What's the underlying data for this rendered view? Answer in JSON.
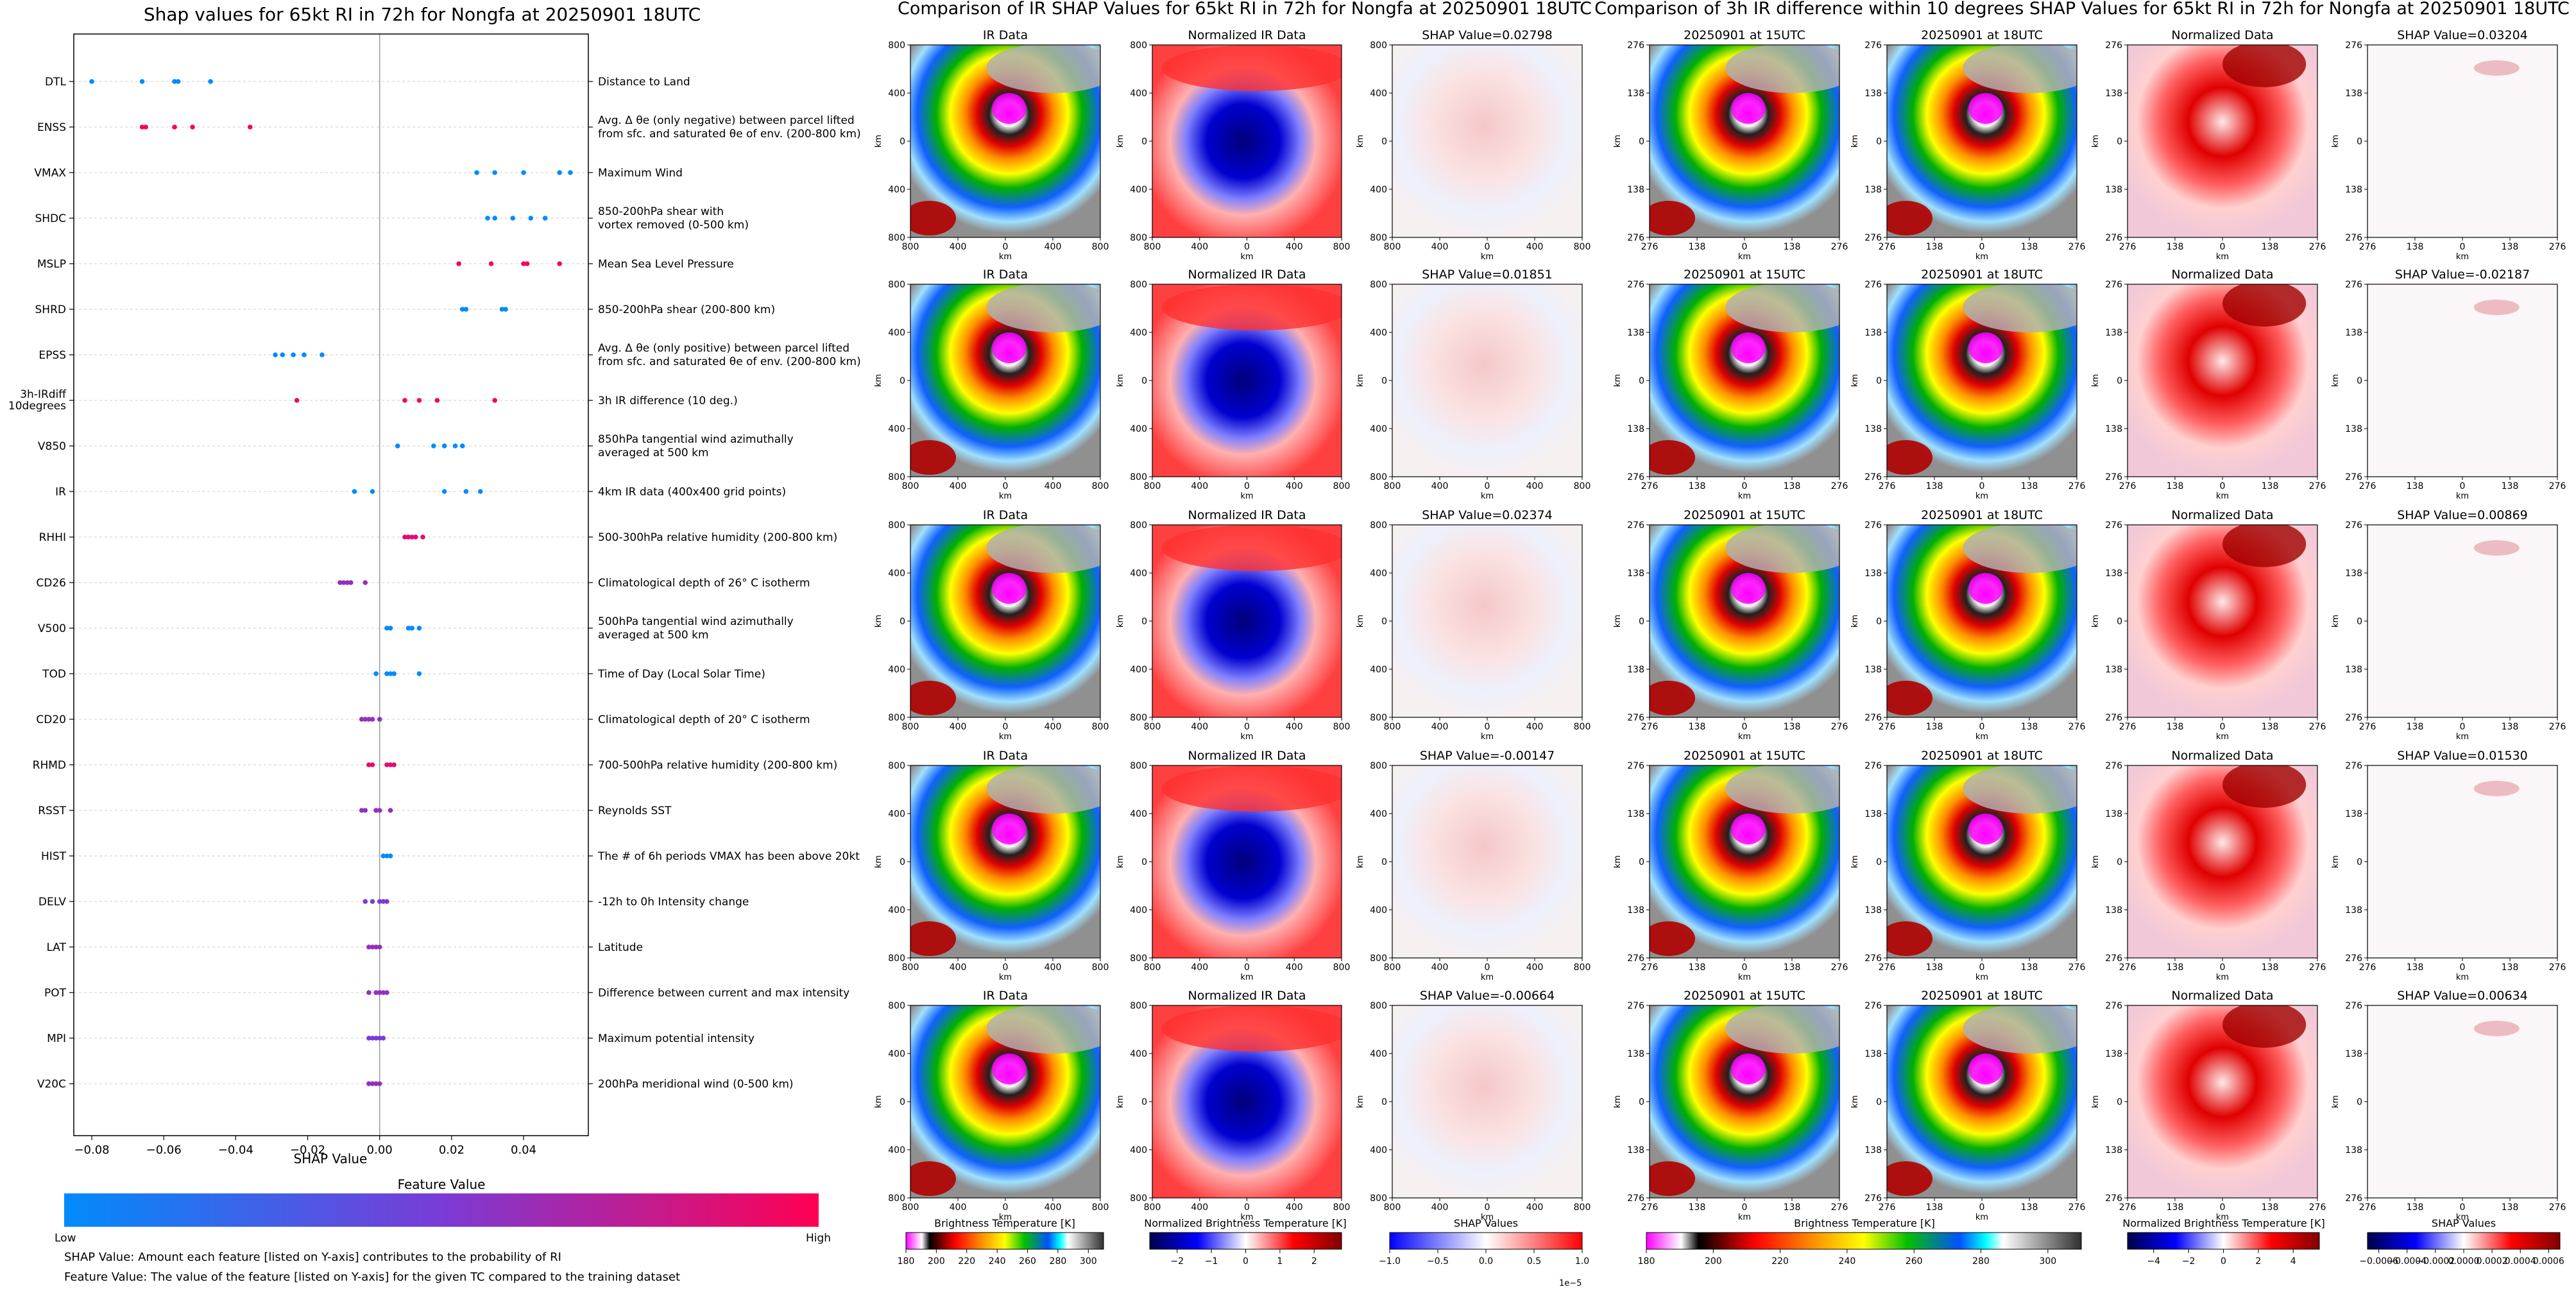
{
  "chart_data": [
    {
      "type": "scatter",
      "title": "Shap values for 65kt RI in 72h for Nongfa at 20250901 18UTC",
      "xlabel": "SHAP Value",
      "xlim": [
        -0.085,
        0.058
      ],
      "xticks": [
        "-0.08",
        "-0.06",
        "-0.04",
        "-0.02",
        "0.00",
        "0.02",
        "0.04"
      ],
      "grid": "horizontal dashed",
      "features": [
        {
          "name": "DTL",
          "desc": "Distance to Land",
          "pts": [
            [
              -0.08,
              0.0
            ],
            [
              -0.066,
              0.0
            ],
            [
              -0.057,
              0.0
            ],
            [
              -0.056,
              0.0
            ],
            [
              -0.047,
              0.0
            ]
          ]
        },
        {
          "name": "ENSS",
          "desc": "Avg. Δ θe (only negative) between parcel lifted from sfc. and saturated θe of env. (200-800 km)",
          "pts": [
            [
              -0.066,
              0.95
            ],
            [
              -0.065,
              0.95
            ],
            [
              -0.057,
              0.95
            ],
            [
              -0.052,
              0.95
            ],
            [
              -0.036,
              0.95
            ]
          ]
        },
        {
          "name": "VMAX",
          "desc": "Maximum Wind",
          "pts": [
            [
              0.027,
              0.0
            ],
            [
              0.032,
              0.0
            ],
            [
              0.04,
              0.0
            ],
            [
              0.05,
              0.0
            ],
            [
              0.053,
              0.0
            ]
          ]
        },
        {
          "name": "SHDC",
          "desc": "850-200hPa shear with vortex removed (0-500 km)",
          "pts": [
            [
              0.03,
              0.0
            ],
            [
              0.032,
              0.0
            ],
            [
              0.037,
              0.0
            ],
            [
              0.042,
              0.0
            ],
            [
              0.046,
              0.0
            ]
          ]
        },
        {
          "name": "MSLP",
          "desc": "Mean Sea Level Pressure",
          "pts": [
            [
              0.022,
              0.95
            ],
            [
              0.031,
              0.95
            ],
            [
              0.04,
              0.95
            ],
            [
              0.041,
              0.95
            ],
            [
              0.05,
              0.95
            ]
          ]
        },
        {
          "name": "SHRD",
          "desc": "850-200hPa shear (200-800 km)",
          "pts": [
            [
              0.023,
              0.0
            ],
            [
              0.024,
              0.0
            ],
            [
              0.034,
              0.0
            ],
            [
              0.035,
              0.0
            ]
          ]
        },
        {
          "name": "EPSS",
          "desc": "Avg. Δ θe (only positive) between parcel lifted from sfc. and saturated θe of env. (200-800 km)",
          "pts": [
            [
              -0.029,
              0.0
            ],
            [
              -0.027,
              0.0
            ],
            [
              -0.024,
              0.0
            ],
            [
              -0.021,
              0.0
            ],
            [
              -0.016,
              0.0
            ]
          ]
        },
        {
          "name": "3h-IRdiff 10degrees",
          "desc": "3h IR difference (10 deg.)",
          "pts": [
            [
              -0.023,
              0.95
            ],
            [
              0.007,
              0.95
            ],
            [
              0.011,
              0.95
            ],
            [
              0.016,
              0.95
            ],
            [
              0.032,
              0.95
            ]
          ]
        },
        {
          "name": "V850",
          "desc": "850hPa tangential wind azimuthally averaged at 500 km",
          "pts": [
            [
              0.005,
              0.0
            ],
            [
              0.015,
              0.0
            ],
            [
              0.018,
              0.0
            ],
            [
              0.021,
              0.0
            ],
            [
              0.023,
              0.0
            ]
          ]
        },
        {
          "name": "IR",
          "desc": "4km IR data (400x400 grid points)",
          "pts": [
            [
              -0.007,
              0.0
            ],
            [
              -0.002,
              0.0
            ],
            [
              0.018,
              0.0
            ],
            [
              0.024,
              0.0
            ],
            [
              0.028,
              0.0
            ]
          ]
        },
        {
          "name": "RHHI",
          "desc": "500-300hPa relative humidity (200-800 km)",
          "pts": [
            [
              0.007,
              0.9
            ],
            [
              0.008,
              0.9
            ],
            [
              0.009,
              0.9
            ],
            [
              0.01,
              0.9
            ],
            [
              0.012,
              0.9
            ]
          ]
        },
        {
          "name": "CD26",
          "desc": "Climatological depth of 26° C isotherm",
          "pts": [
            [
              -0.011,
              0.6
            ],
            [
              -0.01,
              0.6
            ],
            [
              -0.009,
              0.6
            ],
            [
              -0.008,
              0.6
            ],
            [
              -0.004,
              0.6
            ]
          ]
        },
        {
          "name": "V500",
          "desc": "500hPa tangential wind azimuthally averaged at 500 km",
          "pts": [
            [
              0.002,
              0.0
            ],
            [
              0.003,
              0.0
            ],
            [
              0.008,
              0.0
            ],
            [
              0.009,
              0.0
            ],
            [
              0.011,
              0.0
            ]
          ]
        },
        {
          "name": "TOD",
          "desc": "Time of Day (Local Solar Time)",
          "pts": [
            [
              -0.001,
              0.0
            ],
            [
              0.002,
              0.0
            ],
            [
              0.003,
              0.0
            ],
            [
              0.004,
              0.0
            ],
            [
              0.011,
              0.0
            ]
          ]
        },
        {
          "name": "CD20",
          "desc": "Climatological depth of 20° C isotherm",
          "pts": [
            [
              -0.005,
              0.6
            ],
            [
              -0.004,
              0.6
            ],
            [
              -0.003,
              0.6
            ],
            [
              -0.002,
              0.6
            ],
            [
              0.0,
              0.6
            ]
          ]
        },
        {
          "name": "RHMD",
          "desc": "700-500hPa relative humidity (200-800 km)",
          "pts": [
            [
              -0.003,
              0.9
            ],
            [
              -0.002,
              0.9
            ],
            [
              0.002,
              0.9
            ],
            [
              0.003,
              0.9
            ],
            [
              0.004,
              0.9
            ]
          ]
        },
        {
          "name": "RSST",
          "desc": "Reynolds SST",
          "pts": [
            [
              -0.005,
              0.6
            ],
            [
              -0.004,
              0.6
            ],
            [
              -0.001,
              0.6
            ],
            [
              0.0,
              0.6
            ],
            [
              0.003,
              0.6
            ]
          ]
        },
        {
          "name": "HIST",
          "desc": "The # of 6h periods VMAX has been above 20kt",
          "pts": [
            [
              0.001,
              0.0
            ],
            [
              0.002,
              0.0
            ],
            [
              0.003,
              0.0
            ]
          ]
        },
        {
          "name": "DELV",
          "desc": "-12h to 0h Intensity change",
          "pts": [
            [
              -0.004,
              0.5
            ],
            [
              -0.002,
              0.5
            ],
            [
              0.0,
              0.5
            ],
            [
              0.001,
              0.5
            ],
            [
              0.002,
              0.5
            ]
          ]
        },
        {
          "name": "LAT",
          "desc": "Latitude",
          "pts": [
            [
              -0.003,
              0.6
            ],
            [
              -0.002,
              0.6
            ],
            [
              -0.001,
              0.6
            ],
            [
              0.0,
              0.6
            ]
          ]
        },
        {
          "name": "POT",
          "desc": "Difference between current and max intensity",
          "pts": [
            [
              -0.003,
              0.6
            ],
            [
              -0.001,
              0.6
            ],
            [
              0.0,
              0.6
            ],
            [
              0.001,
              0.6
            ],
            [
              0.002,
              0.6
            ]
          ]
        },
        {
          "name": "MPI",
          "desc": "Maximum potential intensity",
          "pts": [
            [
              -0.003,
              0.5
            ],
            [
              -0.002,
              0.5
            ],
            [
              -0.001,
              0.5
            ],
            [
              0.0,
              0.5
            ],
            [
              0.001,
              0.5
            ]
          ]
        },
        {
          "name": "V20C",
          "desc": "200hPa meridional wind (0-500 km)",
          "pts": [
            [
              -0.003,
              0.6
            ],
            [
              -0.002,
              0.6
            ],
            [
              -0.001,
              0.6
            ],
            [
              0.0,
              0.6
            ]
          ]
        }
      ],
      "colorbar": {
        "title": "Feature Value",
        "low": "Low",
        "high": "High",
        "colors": [
          "#008bfb",
          "#7a3bd6",
          "#ff0052"
        ]
      },
      "notes": [
        "SHAP Value: Amount each feature [listed on Y-axis] contributes to the probability of RI",
        "Feature Value: The value of the feature [listed on Y-axis] for the given TC compared to the training dataset"
      ]
    },
    {
      "type": "heatmap",
      "title": "Comparison of IR SHAP Values for 65kt RI in 72h for Nongfa at 20250901 18UTC",
      "columns": [
        "IR Data",
        "Normalized IR Data",
        "SHAP"
      ],
      "shap_values": [
        "0.02798",
        "0.01851",
        "0.02374",
        "-0.00147",
        "-0.00664"
      ],
      "shap_prefix": "SHAP Value=",
      "axis_label": "km",
      "ticks_x": [
        "800",
        "400",
        "0",
        "400",
        "800"
      ],
      "ticks_y": [
        "800",
        "400",
        "0",
        "400",
        "800"
      ],
      "colorbars": [
        {
          "label": "Brightness Temperature [K]",
          "ticks": [
            "180",
            "200",
            "220",
            "240",
            "260",
            "280",
            "300"
          ]
        },
        {
          "label": "Normalized Brightness Temperature [K]",
          "ticks": [
            "−2",
            "−1",
            "0",
            "1",
            "2"
          ]
        },
        {
          "label": "SHAP Values",
          "ticks": [
            "−1.0",
            "−0.5",
            "0.0",
            "0.5",
            "1.0"
          ],
          "exponent": "1e−5"
        }
      ]
    },
    {
      "type": "heatmap",
      "title": "Comparison of 3h IR difference within 10 degrees SHAP Values for 65kt RI in 72h for Nongfa at 20250901 18UTC",
      "columns": [
        "20250901 at 15UTC",
        "20250901 at 18UTC",
        "Normalized Data",
        "SHAP"
      ],
      "shap_values": [
        "0.03204",
        "-0.02187",
        "0.00869",
        "0.01530",
        "0.00634"
      ],
      "shap_prefix": "SHAP Value=",
      "axis_label": "km",
      "ticks_x": [
        "276",
        "138",
        "0",
        "138",
        "276"
      ],
      "ticks_y": [
        "276",
        "138",
        "0",
        "138",
        "276"
      ],
      "colorbars": [
        {
          "label": "Brightness Temperature [K]",
          "ticks": [
            "180",
            "200",
            "220",
            "240",
            "260",
            "280",
            "300"
          ]
        },
        {
          "label": "Normalized Brightness Temperature [K]",
          "ticks": [
            "−4",
            "−2",
            "0",
            "2",
            "4"
          ]
        },
        {
          "label": "SHAP Values",
          "ticks": [
            "−0.0006",
            "−0.0004",
            "−0.0002",
            "0.0000",
            "0.0002",
            "0.0004",
            "0.0006"
          ]
        }
      ]
    }
  ]
}
